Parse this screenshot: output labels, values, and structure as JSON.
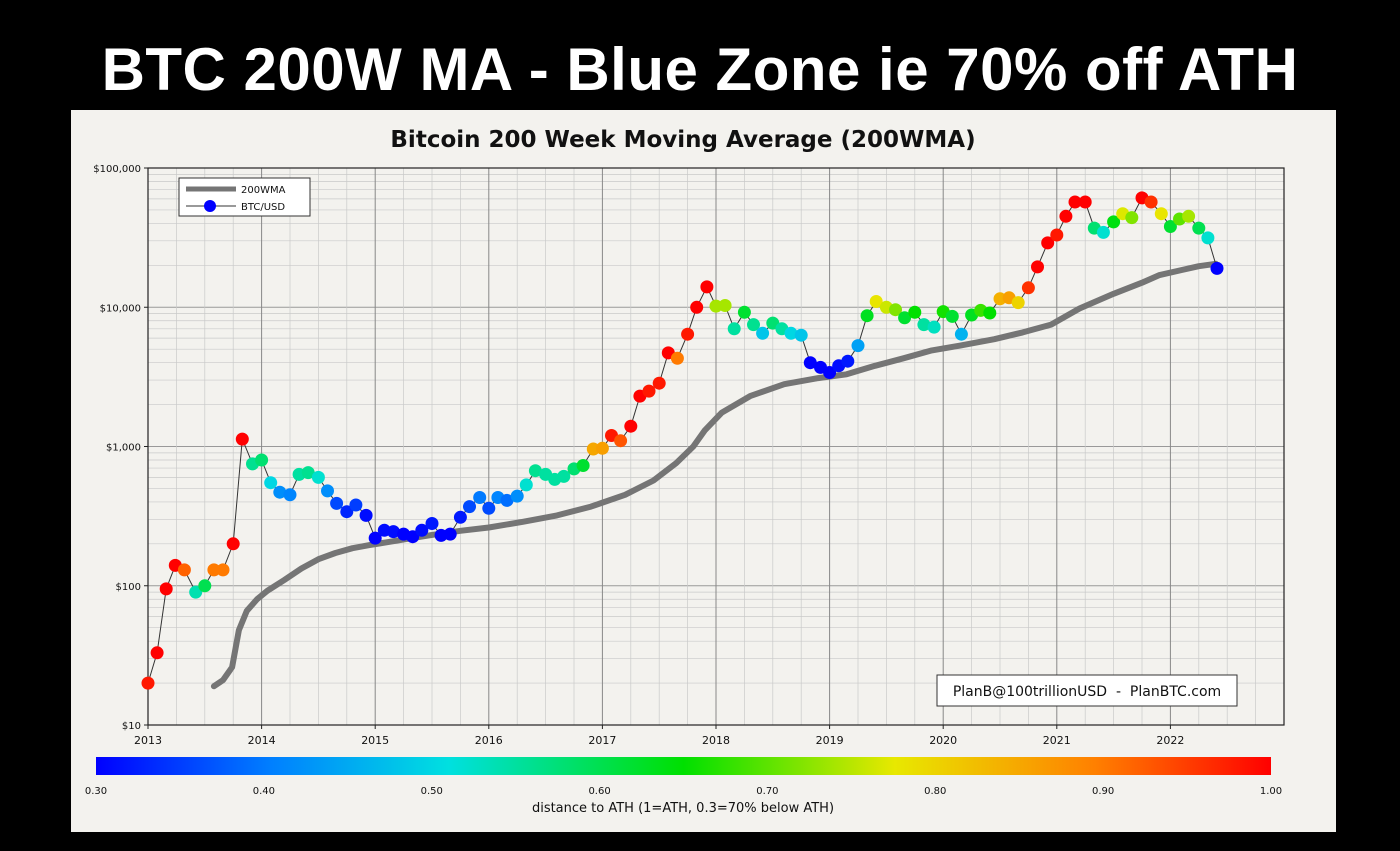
{
  "headline": "BTC 200W MA - Blue Zone ie 70% off ATH",
  "chart_data": {
    "type": "scatter",
    "title": "Bitcoin 200 Week Moving Average (200WMA)",
    "xlabel": "",
    "ylabel": "",
    "y_scale": "log",
    "xlim": [
      2013,
      2023
    ],
    "ylim": [
      10,
      100000
    ],
    "x_ticks": [
      "2013",
      "2014",
      "2015",
      "2016",
      "2017",
      "2018",
      "2019",
      "2020",
      "2021",
      "2022"
    ],
    "y_ticks": [
      "$10",
      "$100",
      "$1,000",
      "$10,000",
      "$100,000"
    ],
    "grid": true,
    "legend_position": "top-left",
    "legend": [
      "200WMA",
      "BTC/USD"
    ],
    "annotation": "PlanB@100trillionUSD  -  PlanBTC.com",
    "colorbar": {
      "label": "distance to ATH (1=ATH, 0.3=70% below ATH)",
      "range": [
        0.3,
        1.0
      ],
      "ticks": [
        "0.30",
        "0.40",
        "0.50",
        "0.60",
        "0.70",
        "0.80",
        "0.90",
        "1.00"
      ]
    },
    "colors": {
      "wma": "#757575",
      "btc_line": "#333333",
      "grid": "#c9c9c9",
      "text": "#111111"
    },
    "series": [
      {
        "name": "200WMA",
        "x": [
          2013.58,
          2013.66,
          2013.74,
          2013.8,
          2013.87,
          2013.96,
          2014.05,
          2014.2,
          2014.35,
          2014.5,
          2014.65,
          2014.8,
          2014.95,
          2015.1,
          2015.3,
          2015.5,
          2015.75,
          2016.0,
          2016.3,
          2016.6,
          2016.9,
          2017.2,
          2017.45,
          2017.65,
          2017.8,
          2017.9,
          2018.05,
          2018.3,
          2018.6,
          2018.9,
          2019.15,
          2019.4,
          2019.65,
          2019.9,
          2020.15,
          2020.45,
          2020.7,
          2020.95,
          2021.2,
          2021.5,
          2021.75,
          2021.9,
          2022.1,
          2022.25,
          2022.4
        ],
        "values": [
          19,
          21,
          26,
          48,
          66,
          80,
          92,
          110,
          133,
          155,
          172,
          186,
          196,
          205,
          218,
          232,
          248,
          262,
          288,
          320,
          370,
          450,
          570,
          760,
          1000,
          1300,
          1750,
          2300,
          2800,
          3100,
          3300,
          3800,
          4300,
          4900,
          5300,
          5900,
          6600,
          7500,
          9800,
          12500,
          15000,
          17000,
          18500,
          19700,
          20500
        ]
      },
      {
        "name": "BTC/USD",
        "x": [
          2013.0,
          2013.08,
          2013.16,
          2013.24,
          2013.32,
          2013.42,
          2013.5,
          2013.58,
          2013.66,
          2013.75,
          2013.83,
          2013.92,
          2014.0,
          2014.08,
          2014.16,
          2014.25,
          2014.33,
          2014.41,
          2014.5,
          2014.58,
          2014.66,
          2014.75,
          2014.83,
          2014.92,
          2015.0,
          2015.08,
          2015.16,
          2015.25,
          2015.33,
          2015.41,
          2015.5,
          2015.58,
          2015.66,
          2015.75,
          2015.83,
          2015.92,
          2016.0,
          2016.08,
          2016.16,
          2016.25,
          2016.33,
          2016.41,
          2016.5,
          2016.58,
          2016.66,
          2016.75,
          2016.83,
          2016.92,
          2017.0,
          2017.08,
          2017.16,
          2017.25,
          2017.33,
          2017.41,
          2017.5,
          2017.58,
          2017.66,
          2017.75,
          2017.83,
          2017.92,
          2018.0,
          2018.08,
          2018.16,
          2018.25,
          2018.33,
          2018.41,
          2018.5,
          2018.58,
          2018.66,
          2018.75,
          2018.83,
          2018.92,
          2019.0,
          2019.08,
          2019.16,
          2019.25,
          2019.33,
          2019.41,
          2019.5,
          2019.58,
          2019.66,
          2019.75,
          2019.83,
          2019.92,
          2020.0,
          2020.08,
          2020.16,
          2020.25,
          2020.33,
          2020.41,
          2020.5,
          2020.58,
          2020.66,
          2020.75,
          2020.83,
          2020.92,
          2021.0,
          2021.08,
          2021.16,
          2021.25,
          2021.33,
          2021.41,
          2021.5,
          2021.58,
          2021.66,
          2021.75,
          2021.83,
          2021.92,
          2022.0,
          2022.08,
          2022.16,
          2022.25,
          2022.33,
          2022.41
        ],
        "values": [
          20,
          33,
          95,
          140,
          130,
          90,
          100,
          130,
          130,
          200,
          1130,
          750,
          800,
          550,
          470,
          450,
          630,
          650,
          600,
          480,
          390,
          340,
          380,
          320,
          220,
          250,
          245,
          235,
          225,
          250,
          280,
          230,
          235,
          310,
          370,
          430,
          360,
          430,
          410,
          440,
          530,
          670,
          630,
          580,
          610,
          690,
          730,
          960,
          970,
          1200,
          1100,
          1400,
          2300,
          2500,
          2850,
          4700,
          4300,
          6400,
          10000,
          14000,
          10200,
          10300,
          7000,
          9200,
          7500,
          6500,
          7700,
          7000,
          6500,
          6300,
          4000,
          3700,
          3400,
          3800,
          4100,
          5300,
          8700,
          11000,
          10000,
          9600,
          8400,
          9200,
          7500,
          7200,
          9300,
          8600,
          6400,
          8800,
          9500,
          9100,
          11500,
          11700,
          10800,
          13800,
          19500,
          29000,
          33000,
          45000,
          57000,
          57000,
          37000,
          34500,
          41000,
          47000,
          44000,
          61000,
          57000,
          47000,
          38000,
          43000,
          45000,
          37000,
          31500,
          19000
        ],
        "distance_to_ath": [
          0.98,
          1.0,
          1.0,
          1.0,
          0.92,
          0.54,
          0.6,
          0.9,
          0.9,
          1.0,
          1.0,
          0.56,
          0.58,
          0.5,
          0.42,
          0.41,
          0.55,
          0.56,
          0.52,
          0.42,
          0.36,
          0.33,
          0.35,
          0.31,
          0.3,
          0.31,
          0.31,
          0.3,
          0.3,
          0.31,
          0.32,
          0.3,
          0.3,
          0.32,
          0.36,
          0.4,
          0.36,
          0.41,
          0.39,
          0.42,
          0.52,
          0.56,
          0.55,
          0.55,
          0.55,
          0.58,
          0.62,
          0.85,
          0.86,
          0.98,
          0.93,
          1.0,
          1.0,
          0.98,
          0.98,
          1.0,
          0.9,
          0.98,
          1.0,
          1.0,
          0.74,
          0.74,
          0.55,
          0.62,
          0.56,
          0.48,
          0.58,
          0.55,
          0.5,
          0.48,
          0.3,
          0.3,
          0.3,
          0.31,
          0.32,
          0.44,
          0.63,
          0.78,
          0.76,
          0.72,
          0.62,
          0.65,
          0.55,
          0.53,
          0.66,
          0.62,
          0.46,
          0.63,
          0.68,
          0.65,
          0.84,
          0.86,
          0.8,
          0.96,
          1.0,
          1.0,
          0.98,
          1.0,
          1.0,
          1.0,
          0.58,
          0.52,
          0.64,
          0.77,
          0.72,
          1.0,
          0.96,
          0.78,
          0.62,
          0.7,
          0.74,
          0.6,
          0.52,
          0.3
        ]
      }
    ]
  }
}
